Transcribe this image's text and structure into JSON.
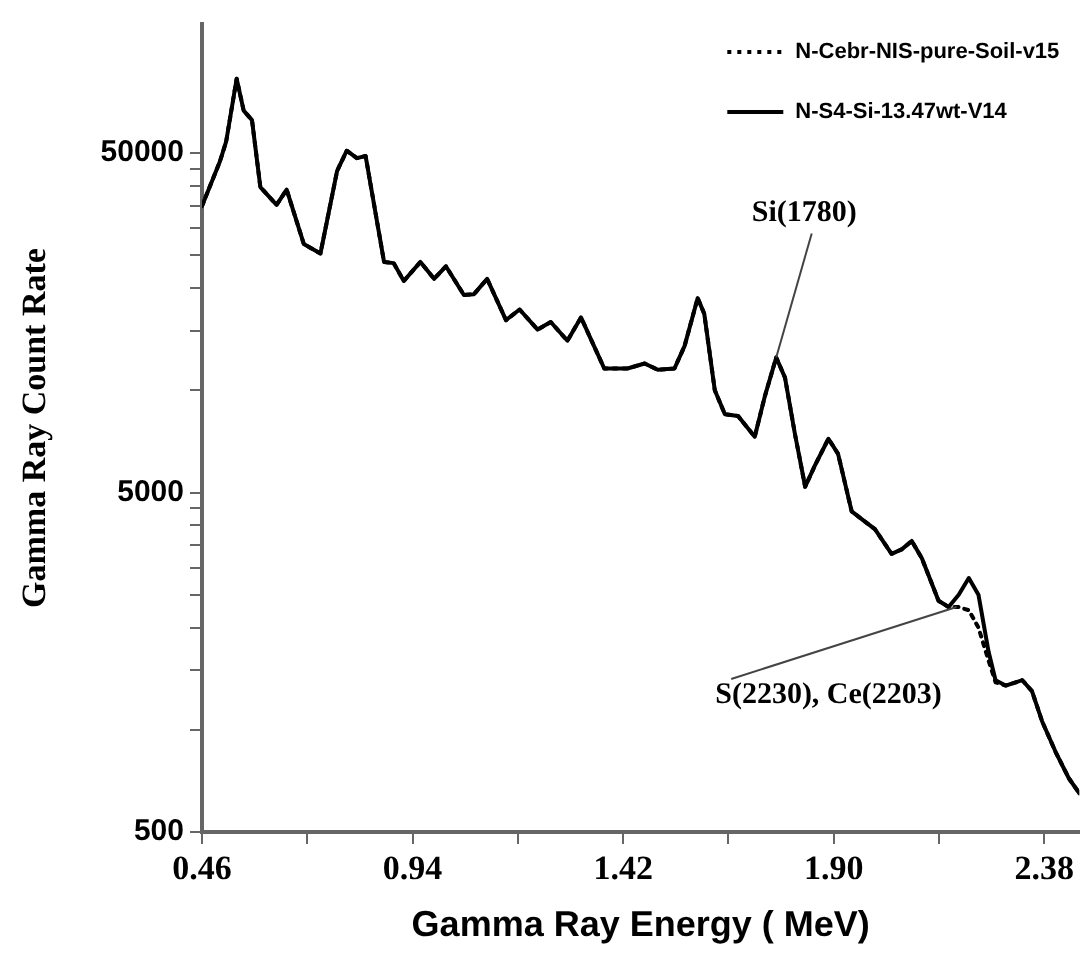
{
  "chart_data": {
    "type": "line",
    "xlabel": "Gamma Ray Energy ( MeV)",
    "ylabel": "Gamma Ray Count Rate",
    "log": "y",
    "legend": "top right",
    "marker": "none",
    "xlim": [
      0.46,
      2.46
    ],
    "xticks": [
      0.46,
      {
        "value": 0.7,
        "label": null
      },
      0.94,
      {
        "value": 1.18,
        "label": null
      },
      1.42,
      {
        "value": 1.66,
        "label": null
      },
      {
        "value": 1.9,
        "label": "1.90"
      },
      {
        "value": 2.14,
        "label": null
      },
      2.38
    ],
    "ylim": [
      500,
      120000
    ],
    "yticks": [
      500,
      {
        "value": 1000,
        "label": null
      },
      {
        "value": 1500,
        "label": null
      },
      {
        "value": 2000,
        "label": null
      },
      {
        "value": 2500,
        "label": null
      },
      {
        "value": 3000,
        "label": null
      },
      {
        "value": 3500,
        "label": null
      },
      {
        "value": 4000,
        "label": null
      },
      {
        "value": 4500,
        "label": null
      },
      5000,
      {
        "value": 10000,
        "label": null
      },
      {
        "value": 15000,
        "label": null
      },
      {
        "value": 20000,
        "label": null
      },
      {
        "value": 25000,
        "label": null
      },
      {
        "value": 30000,
        "label": null
      },
      {
        "value": 35000,
        "label": null
      },
      {
        "value": 40000,
        "label": null
      },
      {
        "value": 45000,
        "label": null
      },
      50000
    ],
    "x": [
      0.46,
      0.501,
      0.515,
      0.539,
      0.555,
      0.574,
      0.593,
      0.63,
      0.653,
      0.692,
      0.73,
      0.768,
      0.79,
      0.813,
      0.833,
      0.875,
      0.897,
      0.92,
      0.958,
      0.989,
      1.016,
      1.057,
      1.08,
      1.11,
      1.153,
      1.184,
      1.225,
      1.255,
      1.293,
      1.324,
      1.347,
      1.377,
      1.43,
      1.469,
      1.499,
      1.537,
      1.56,
      1.59,
      1.605,
      1.629,
      1.652,
      1.682,
      1.72,
      1.743,
      1.769,
      1.789,
      1.812,
      1.835,
      1.857,
      1.888,
      1.91,
      1.941,
      1.972,
      1.994,
      2.032,
      2.055,
      2.078,
      2.101,
      2.139,
      2.162,
      2.185,
      2.208,
      2.23,
      2.253,
      2.269,
      2.292,
      2.33,
      2.352,
      2.375,
      2.406,
      2.436,
      2.46
    ],
    "series": [
      {
        "name": "N-Cebr-NIS-pure-Soil-v15",
        "color": "#000000",
        "line_style": "dotted",
        "values": [
          34900,
          47300,
          54000,
          82800,
          66700,
          62500,
          39700,
          35200,
          39000,
          27000,
          25300,
          44300,
          50800,
          48300,
          49000,
          23900,
          23700,
          21000,
          23900,
          21300,
          23200,
          19100,
          19200,
          21300,
          16100,
          17300,
          15100,
          15900,
          14000,
          16400,
          14100,
          11600,
          11600,
          12000,
          11500,
          11600,
          13500,
          18700,
          16800,
          10000,
          8500,
          8400,
          7300,
          9600,
          12500,
          10900,
          7400,
          5200,
          6000,
          7200,
          6500,
          4400,
          4100,
          3900,
          3300,
          3400,
          3600,
          3200,
          2400,
          2300,
          2300,
          2250,
          2000,
          1600,
          1380,
          1350,
          1400,
          1300,
          1060,
          860,
          720,
          650
        ]
      },
      {
        "name": "N-S4-Si-13.47wt-V14",
        "color": "#000000",
        "line_style": "solid",
        "values": [
          34900,
          47300,
          54000,
          82800,
          66700,
          62500,
          39700,
          35200,
          39000,
          27000,
          25300,
          44300,
          50800,
          48300,
          49000,
          23900,
          23700,
          21000,
          23900,
          21300,
          23200,
          19100,
          19200,
          21300,
          16100,
          17300,
          15100,
          15900,
          14000,
          16400,
          14100,
          11600,
          11600,
          12000,
          11500,
          11600,
          13500,
          18700,
          16800,
          10000,
          8500,
          8400,
          7300,
          9600,
          12500,
          10900,
          7400,
          5200,
          6000,
          7200,
          6500,
          4400,
          4100,
          3900,
          3300,
          3400,
          3600,
          3200,
          2400,
          2300,
          2500,
          2800,
          2500,
          1700,
          1400,
          1350,
          1400,
          1300,
          1060,
          860,
          720,
          650
        ]
      }
    ],
    "annotations": [
      {
        "text": "Si(1780)",
        "x": 1.769,
        "y": 12500
      },
      {
        "text": "S(2230), Ce(2203)",
        "x": 2.18,
        "y": 2300
      }
    ]
  }
}
